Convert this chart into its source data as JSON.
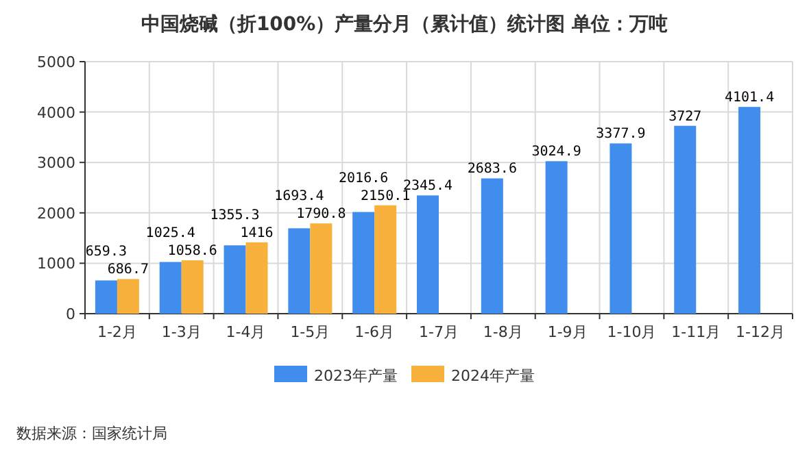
{
  "chart_data": {
    "type": "bar",
    "title": "中国烧碱（折100%）产量分月（累计值）统计图 单位：万吨",
    "categories": [
      "1-2月",
      "1-3月",
      "1-4月",
      "1-5月",
      "1-6月",
      "1-7月",
      "1-8月",
      "1-9月",
      "1-10月",
      "1-11月",
      "1-12月"
    ],
    "series": [
      {
        "name": "2023年产量",
        "color": "#418ded",
        "values": [
          659.3,
          1025.4,
          1355.3,
          1693.4,
          2016.6,
          2345.4,
          2683.6,
          3024.9,
          3377.9,
          3727,
          4101.4
        ]
      },
      {
        "name": "2024年产量",
        "color": "#f9b13d",
        "values": [
          686.7,
          1058.6,
          1416,
          1790.8,
          2150.1,
          null,
          null,
          null,
          null,
          null,
          null
        ]
      }
    ],
    "ylim": [
      0,
      5000
    ],
    "yticks": [
      0,
      1000,
      2000,
      3000,
      4000,
      5000
    ],
    "grid": true,
    "legend": "bottom",
    "data_labels": true,
    "annotations": [
      "数据来源：国家统计局"
    ]
  }
}
